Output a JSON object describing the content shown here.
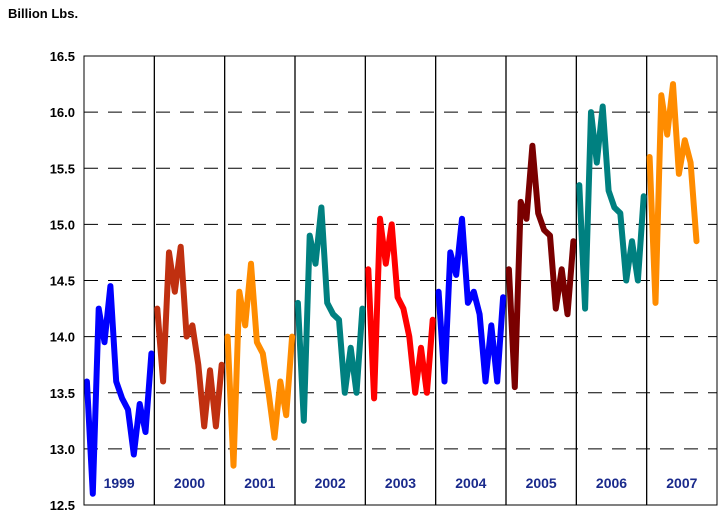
{
  "chart_data": {
    "type": "line",
    "title": "",
    "xlabel": "",
    "ylabel": "Billion Lbs.",
    "ylim": [
      12.5,
      16.5
    ],
    "yticks": [
      "12.5",
      "13.0",
      "13.5",
      "14.0",
      "14.5",
      "15.0",
      "15.5",
      "16.0",
      "16.5"
    ],
    "grid": "dashed horizontal gridlines, solid vertical year separators",
    "legend": "none",
    "x_unit": "month",
    "series": [
      {
        "year": "1999",
        "color": "#0000ff",
        "values": [
          13.6,
          12.6,
          14.25,
          13.95,
          14.45,
          13.6,
          13.45,
          13.35,
          12.95,
          13.4,
          13.15,
          13.85
        ]
      },
      {
        "year": "2000",
        "color": "#c03010",
        "values": [
          14.25,
          13.6,
          14.75,
          14.4,
          14.8,
          14.0,
          14.1,
          13.75,
          13.2,
          13.7,
          13.2,
          13.75
        ]
      },
      {
        "year": "2001",
        "color": "#ff8c00",
        "values": [
          14.0,
          12.85,
          14.4,
          14.1,
          14.65,
          13.95,
          13.85,
          13.5,
          13.1,
          13.6,
          13.3,
          14.0
        ]
      },
      {
        "year": "2002",
        "color": "#008080",
        "values": [
          14.3,
          13.25,
          14.9,
          14.65,
          15.15,
          14.3,
          14.2,
          14.15,
          13.5,
          13.9,
          13.5,
          14.25
        ]
      },
      {
        "year": "2003",
        "color": "#ff0000",
        "values": [
          14.6,
          13.45,
          15.05,
          14.65,
          15.0,
          14.35,
          14.25,
          14.0,
          13.5,
          13.9,
          13.5,
          14.15
        ]
      },
      {
        "year": "2004",
        "color": "#0000ff",
        "values": [
          14.4,
          13.6,
          14.75,
          14.55,
          15.05,
          14.3,
          14.4,
          14.2,
          13.6,
          14.1,
          13.6,
          14.35
        ]
      },
      {
        "year": "2005",
        "color": "#7a0000",
        "values": [
          14.6,
          13.55,
          15.2,
          15.05,
          15.7,
          15.1,
          14.95,
          14.9,
          14.25,
          14.6,
          14.2,
          14.85
        ]
      },
      {
        "year": "2006",
        "color": "#008080",
        "values": [
          15.35,
          14.25,
          16.0,
          15.55,
          16.05,
          15.3,
          15.15,
          15.1,
          14.5,
          14.85,
          14.5,
          15.25
        ]
      },
      {
        "year": "2007",
        "color": "#ff8c00",
        "values": [
          15.6,
          14.3,
          16.15,
          15.8,
          16.25,
          15.45,
          15.75,
          15.55,
          14.85
        ]
      }
    ]
  }
}
